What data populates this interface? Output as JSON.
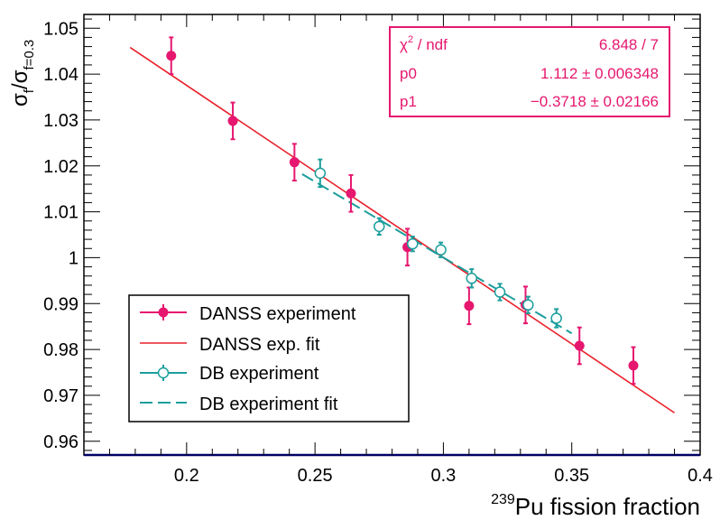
{
  "chart_data": {
    "type": "scatter",
    "title": "",
    "xlabel": {
      "sup": "239",
      "main": "Pu fission fraction"
    },
    "ylabel": {
      "main": "σ",
      "sub1": "f",
      "slash": "/σ",
      "sub2": "f=0.3"
    },
    "xlim": [
      0.16,
      0.4
    ],
    "ylim": [
      0.957,
      1.053
    ],
    "x_ticks": [
      {
        "value": 0.2,
        "label": "0.2"
      },
      {
        "value": 0.25,
        "label": "0.25"
      },
      {
        "value": 0.3,
        "label": "0.3"
      },
      {
        "value": 0.35,
        "label": "0.35"
      },
      {
        "value": 0.4,
        "label": "0.4"
      }
    ],
    "y_ticks": [
      {
        "value": 0.96,
        "label": "0.96"
      },
      {
        "value": 0.97,
        "label": "0.97"
      },
      {
        "value": 0.98,
        "label": "0.98"
      },
      {
        "value": 0.99,
        "label": "0.99"
      },
      {
        "value": 1.0,
        "label": "1"
      },
      {
        "value": 1.01,
        "label": "1.01"
      },
      {
        "value": 1.02,
        "label": "1.02"
      },
      {
        "value": 1.03,
        "label": "1.03"
      },
      {
        "value": 1.04,
        "label": "1.04"
      },
      {
        "value": 1.05,
        "label": "1.05"
      }
    ],
    "series": [
      {
        "name": "DANSS experiment",
        "kind": "points",
        "marker": "filled-circle",
        "color": "#e6176f",
        "points": [
          {
            "x": 0.194,
            "y": 1.044,
            "err": 0.004
          },
          {
            "x": 0.218,
            "y": 1.0298,
            "err": 0.004
          },
          {
            "x": 0.242,
            "y": 1.0208,
            "err": 0.004
          },
          {
            "x": 0.264,
            "y": 1.014,
            "err": 0.004
          },
          {
            "x": 0.286,
            "y": 1.0023,
            "err": 0.004
          },
          {
            "x": 0.31,
            "y": 0.9895,
            "err": 0.004
          },
          {
            "x": 0.332,
            "y": 0.9897,
            "err": 0.004
          },
          {
            "x": 0.353,
            "y": 0.9808,
            "err": 0.004
          },
          {
            "x": 0.374,
            "y": 0.9765,
            "err": 0.004
          }
        ]
      },
      {
        "name": "DANSS exp. fit",
        "kind": "line",
        "color": "#e8202a",
        "x": [
          0.178,
          0.39
        ],
        "y": [
          1.0458,
          0.9662
        ]
      },
      {
        "name": "DB experiment",
        "kind": "points",
        "marker": "open-circle",
        "color": "#1c9e9c",
        "points": [
          {
            "x": 0.252,
            "y": 1.0184,
            "err": 0.003
          },
          {
            "x": 0.275,
            "y": 1.0068,
            "err": 0.0018
          },
          {
            "x": 0.288,
            "y": 1.003,
            "err": 0.0016
          },
          {
            "x": 0.299,
            "y": 1.0017,
            "err": 0.0016
          },
          {
            "x": 0.311,
            "y": 0.9955,
            "err": 0.002
          },
          {
            "x": 0.322,
            "y": 0.9925,
            "err": 0.0018
          },
          {
            "x": 0.333,
            "y": 0.9897,
            "err": 0.0018
          },
          {
            "x": 0.344,
            "y": 0.9868,
            "err": 0.002
          }
        ]
      },
      {
        "name": "DB experiment fit",
        "kind": "dashed-line",
        "color": "#1c9e9c",
        "x": [
          0.245,
          0.35
        ],
        "y": [
          1.0182,
          0.9835
        ]
      }
    ],
    "stats_box": {
      "rows": [
        {
          "label_main": "χ",
          "label_sup": "2",
          "label_rest": " / ndf",
          "value": "6.848 / 7"
        },
        {
          "label_main": "p0",
          "label_sup": "",
          "label_rest": "",
          "value": "1.112 ± 0.006348"
        },
        {
          "label_main": "p1",
          "label_sup": "",
          "label_rest": "",
          "value": "−0.3718 ± 0.02166"
        }
      ],
      "color": "#e6176f",
      "placement": "top-right"
    },
    "legend": {
      "placement": "bottom-left",
      "entries": [
        {
          "label": "DANSS experiment",
          "series": 0
        },
        {
          "label": "DANSS exp. fit",
          "series": 1
        },
        {
          "label": "DB experiment",
          "series": 2
        },
        {
          "label": "DB experiment fit",
          "series": 3
        }
      ]
    }
  }
}
